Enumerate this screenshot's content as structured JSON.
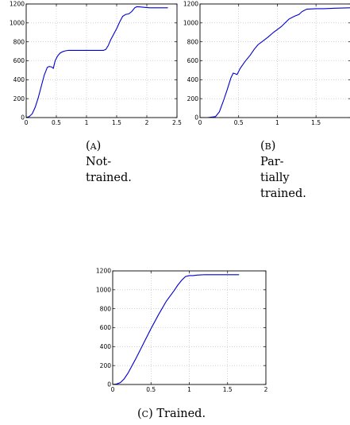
{
  "chart_data": [
    {
      "type": "line",
      "panel_label": "(A)",
      "caption_lines": [
        "Not-",
        "trained."
      ],
      "xlim": [
        0,
        2.5
      ],
      "ylim": [
        0,
        1200
      ],
      "xticks": [
        "0",
        "0.5",
        "1",
        "1.5",
        "2",
        "2.5"
      ],
      "xtick_values": [
        0,
        0.5,
        1,
        1.5,
        2,
        2.5
      ],
      "yticks": [
        "0",
        "200",
        "400",
        "600",
        "800",
        "1000",
        "1200"
      ],
      "ytick_values": [
        0,
        200,
        400,
        600,
        800,
        1000,
        1200
      ],
      "grid": true,
      "color": "#0000d0",
      "x": [
        0,
        0.05,
        0.1,
        0.15,
        0.2,
        0.25,
        0.3,
        0.35,
        0.38,
        0.42,
        0.45,
        0.48,
        0.52,
        0.56,
        0.6,
        0.65,
        0.7,
        0.8,
        0.9,
        1.0,
        1.1,
        1.2,
        1.28,
        1.32,
        1.36,
        1.4,
        1.45,
        1.5,
        1.55,
        1.6,
        1.65,
        1.7,
        1.75,
        1.8,
        1.83,
        1.87,
        1.95,
        2.05,
        2.2,
        2.35
      ],
      "y": [
        0,
        10,
        40,
        110,
        210,
        330,
        450,
        530,
        540,
        535,
        520,
        600,
        650,
        680,
        695,
        705,
        710,
        710,
        710,
        710,
        710,
        710,
        710,
        720,
        760,
        820,
        880,
        940,
        1010,
        1070,
        1090,
        1095,
        1120,
        1160,
        1170,
        1170,
        1165,
        1160,
        1160,
        1160
      ]
    },
    {
      "type": "line",
      "panel_label": "(B)",
      "caption_lines": [
        "Par-",
        "tially",
        "trained."
      ],
      "xlim": [
        0,
        1.95
      ],
      "ylim": [
        0,
        1200
      ],
      "xticks": [
        "0",
        "0.5",
        "1",
        "1.5"
      ],
      "xtick_values": [
        0,
        0.5,
        1,
        1.5
      ],
      "yticks": [
        "0",
        "200",
        "400",
        "600",
        "800",
        "1000",
        "1200"
      ],
      "ytick_values": [
        0,
        200,
        400,
        600,
        800,
        1000,
        1200
      ],
      "grid": true,
      "color": "#0000d0",
      "x": [
        0,
        0.1,
        0.2,
        0.25,
        0.3,
        0.35,
        0.4,
        0.43,
        0.45,
        0.48,
        0.52,
        0.58,
        0.65,
        0.7,
        0.75,
        0.8,
        0.88,
        0.95,
        1.05,
        1.15,
        1.22,
        1.28,
        1.32,
        1.38,
        1.5,
        1.6,
        1.75,
        1.95
      ],
      "y": [
        0,
        0,
        10,
        60,
        170,
        290,
        420,
        470,
        465,
        455,
        520,
        590,
        660,
        720,
        770,
        800,
        850,
        900,
        960,
        1040,
        1070,
        1090,
        1120,
        1145,
        1150,
        1150,
        1155,
        1160
      ]
    },
    {
      "type": "line",
      "panel_label": "(C)",
      "caption_lines": [
        "Trained."
      ],
      "xlim": [
        0,
        2
      ],
      "ylim": [
        0,
        1200
      ],
      "xticks": [
        "0",
        "0.5",
        "1",
        "1.5",
        "2"
      ],
      "xtick_values": [
        0,
        0.5,
        1,
        1.5,
        2
      ],
      "yticks": [
        "0",
        "200",
        "400",
        "600",
        "800",
        "1000",
        "1200"
      ],
      "ytick_values": [
        0,
        200,
        400,
        600,
        800,
        1000,
        1200
      ],
      "grid": true,
      "color": "#0000d0",
      "x": [
        0,
        0.05,
        0.1,
        0.15,
        0.2,
        0.3,
        0.4,
        0.5,
        0.6,
        0.7,
        0.8,
        0.85,
        0.9,
        0.95,
        1.0,
        1.05,
        1.1,
        1.2,
        1.3,
        1.4,
        1.5,
        1.65
      ],
      "y": [
        0,
        5,
        20,
        60,
        120,
        270,
        430,
        590,
        740,
        880,
        990,
        1050,
        1100,
        1140,
        1150,
        1150,
        1155,
        1160,
        1160,
        1160,
        1160,
        1160
      ]
    }
  ]
}
